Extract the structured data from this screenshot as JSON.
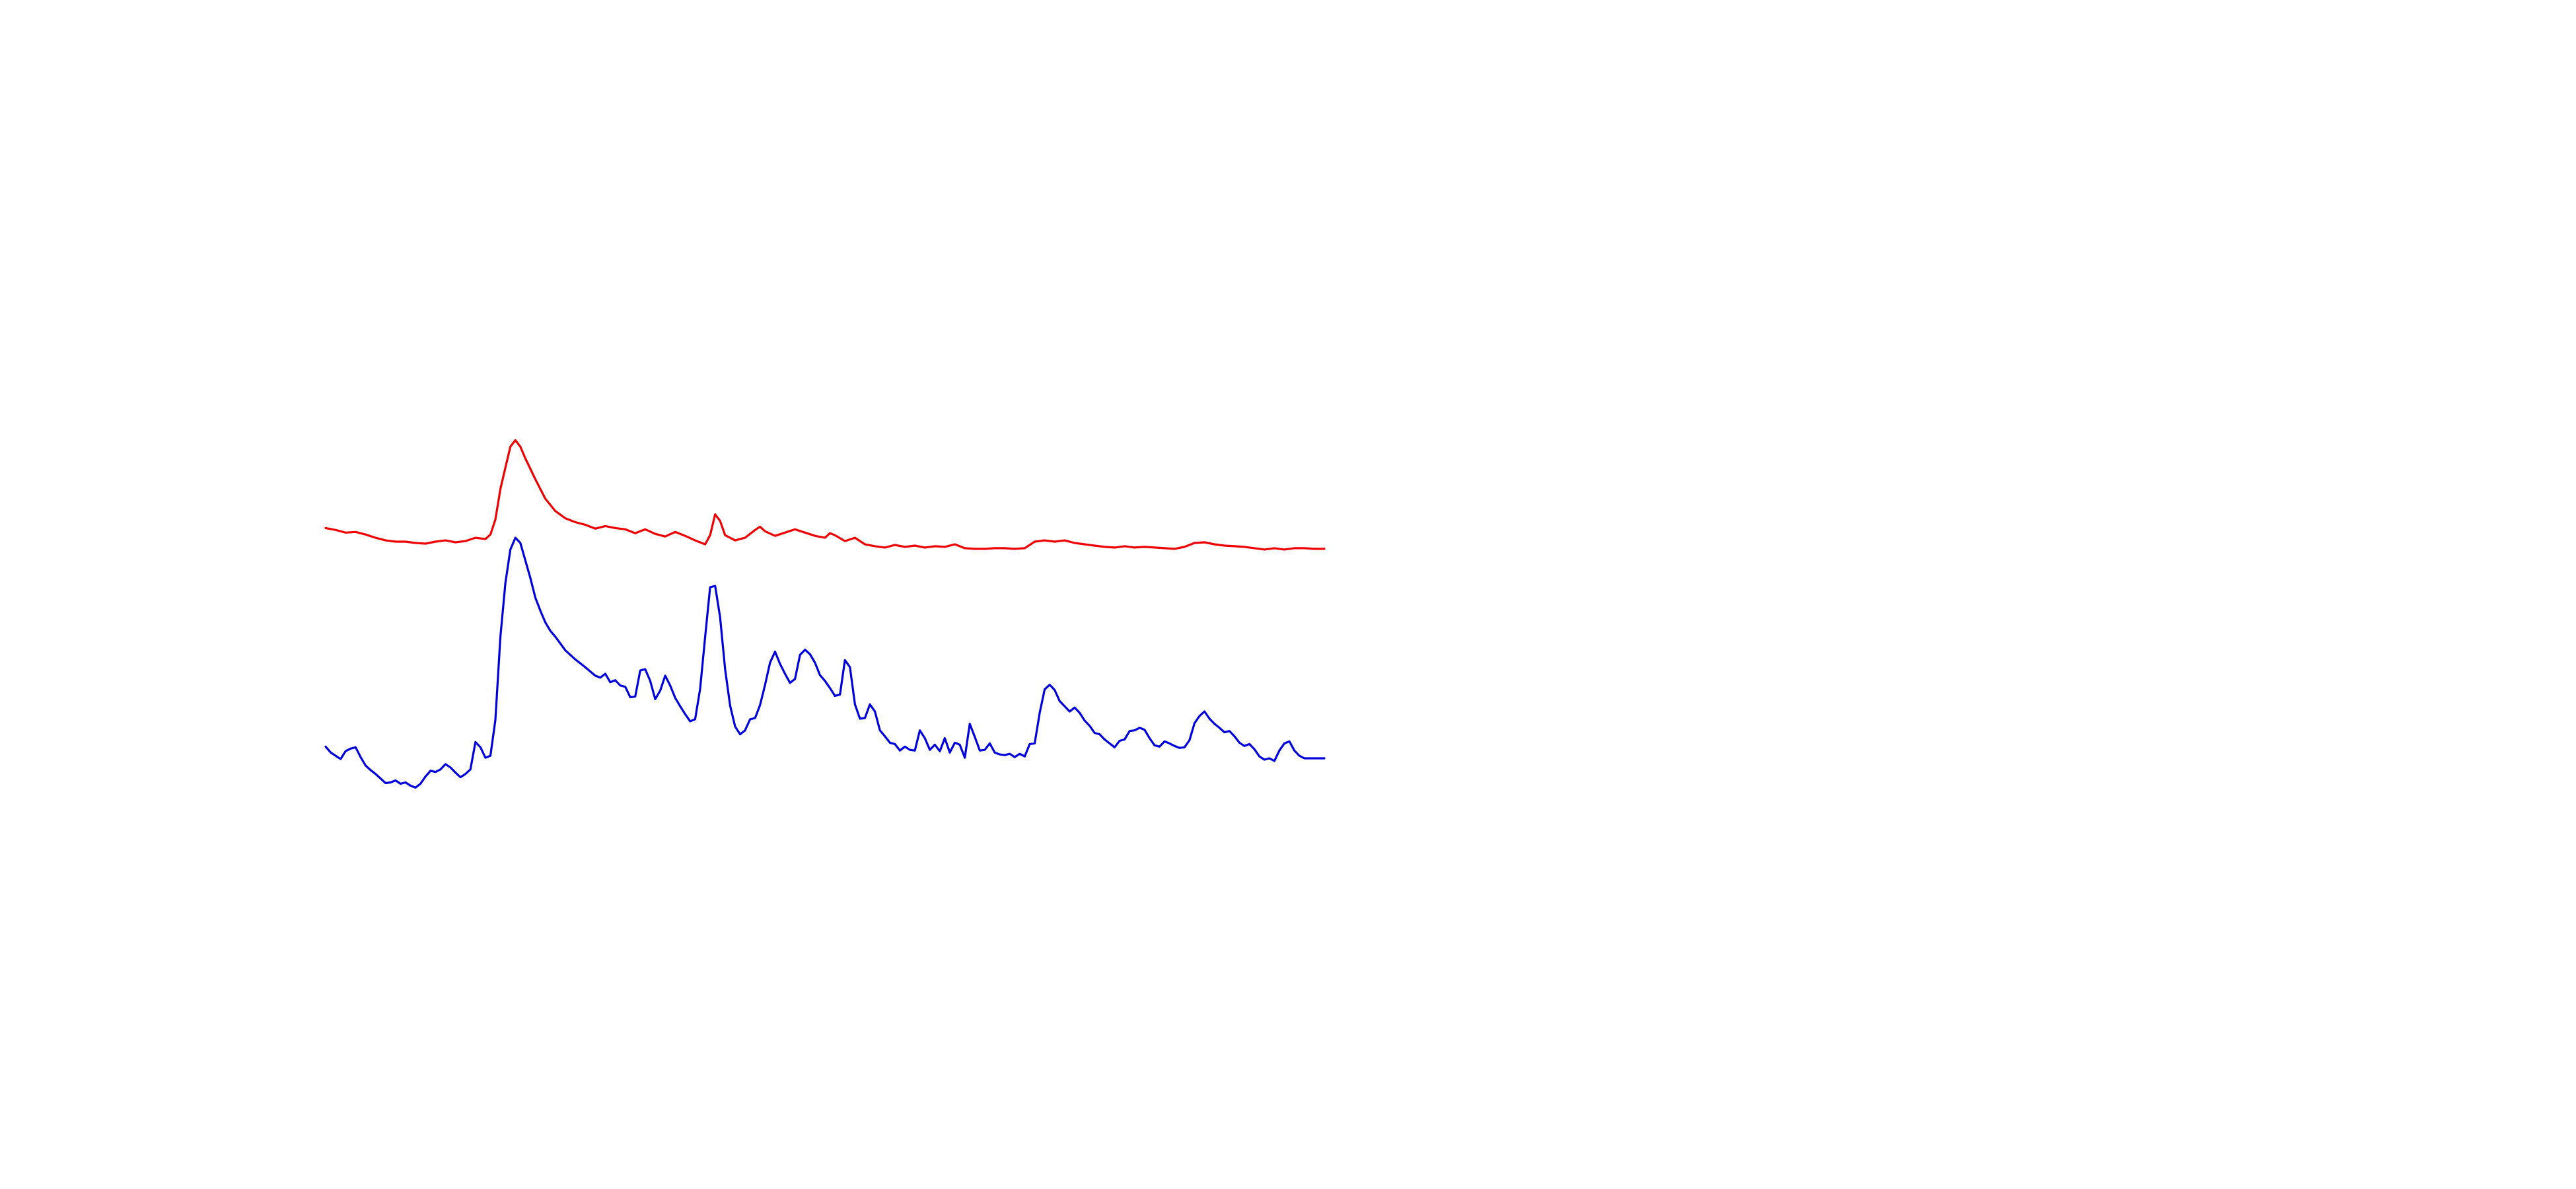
{
  "chart_data": {
    "type": "line",
    "title": "",
    "xlabel": "",
    "ylabel": "",
    "axes_visible": false,
    "grid": false,
    "legend": "none",
    "xlim": [
      0,
      100
    ],
    "ylim": [
      0,
      100
    ],
    "series": [
      {
        "color": "#ee0000",
        "points": [
          [
            0.0,
            75.7
          ],
          [
            1.0,
            75.4
          ],
          [
            2.0,
            75.0
          ],
          [
            3.0,
            75.1
          ],
          [
            4.0,
            74.7
          ],
          [
            5.0,
            74.2
          ],
          [
            6.0,
            73.8
          ],
          [
            7.0,
            73.6
          ],
          [
            8.0,
            73.6
          ],
          [
            9.0,
            73.4
          ],
          [
            10.0,
            73.3
          ],
          [
            11.0,
            73.6
          ],
          [
            12.0,
            73.8
          ],
          [
            13.0,
            73.5
          ],
          [
            14.0,
            73.7
          ],
          [
            15.0,
            74.2
          ],
          [
            16.0,
            74.0
          ],
          [
            16.5,
            74.7
          ],
          [
            17.0,
            77.0
          ],
          [
            17.5,
            81.7
          ],
          [
            18.0,
            85.0
          ],
          [
            18.5,
            88.2
          ],
          [
            19.0,
            89.2
          ],
          [
            19.5,
            88.2
          ],
          [
            20.0,
            86.4
          ],
          [
            21.0,
            83.2
          ],
          [
            22.0,
            80.2
          ],
          [
            23.0,
            78.3
          ],
          [
            24.0,
            77.2
          ],
          [
            25.0,
            76.6
          ],
          [
            26.0,
            76.2
          ],
          [
            27.0,
            75.6
          ],
          [
            28.0,
            76.0
          ],
          [
            29.0,
            75.7
          ],
          [
            30.0,
            75.5
          ],
          [
            31.0,
            74.9
          ],
          [
            32.0,
            75.5
          ],
          [
            33.0,
            74.8
          ],
          [
            34.0,
            74.4
          ],
          [
            35.0,
            75.1
          ],
          [
            36.0,
            74.5
          ],
          [
            37.0,
            73.8
          ],
          [
            38.0,
            73.2
          ],
          [
            38.5,
            74.6
          ],
          [
            39.0,
            77.8
          ],
          [
            39.5,
            76.8
          ],
          [
            40.0,
            74.6
          ],
          [
            41.0,
            73.8
          ],
          [
            42.0,
            74.2
          ],
          [
            43.0,
            75.4
          ],
          [
            43.5,
            75.9
          ],
          [
            44.0,
            75.2
          ],
          [
            45.0,
            74.5
          ],
          [
            46.0,
            75.0
          ],
          [
            47.0,
            75.5
          ],
          [
            48.0,
            75.0
          ],
          [
            49.0,
            74.5
          ],
          [
            50.0,
            74.2
          ],
          [
            50.5,
            74.9
          ],
          [
            51.0,
            74.6
          ],
          [
            52.0,
            73.7
          ],
          [
            53.0,
            74.2
          ],
          [
            54.0,
            73.2
          ],
          [
            55.0,
            72.9
          ],
          [
            56.0,
            72.7
          ],
          [
            57.0,
            73.1
          ],
          [
            58.0,
            72.8
          ],
          [
            59.0,
            73.0
          ],
          [
            60.0,
            72.7
          ],
          [
            61.0,
            72.9
          ],
          [
            62.0,
            72.8
          ],
          [
            63.0,
            73.2
          ],
          [
            64.0,
            72.6
          ],
          [
            65.0,
            72.5
          ],
          [
            66.0,
            72.5
          ],
          [
            67.0,
            72.6
          ],
          [
            68.0,
            72.6
          ],
          [
            69.0,
            72.5
          ],
          [
            70.0,
            72.6
          ],
          [
            71.0,
            73.6
          ],
          [
            72.0,
            73.8
          ],
          [
            73.0,
            73.6
          ],
          [
            74.0,
            73.8
          ],
          [
            75.0,
            73.4
          ],
          [
            76.0,
            73.2
          ],
          [
            77.0,
            73.0
          ],
          [
            78.0,
            72.8
          ],
          [
            79.0,
            72.7
          ],
          [
            80.0,
            72.9
          ],
          [
            81.0,
            72.7
          ],
          [
            82.0,
            72.8
          ],
          [
            83.0,
            72.7
          ],
          [
            84.0,
            72.6
          ],
          [
            85.0,
            72.5
          ],
          [
            86.0,
            72.8
          ],
          [
            87.0,
            73.4
          ],
          [
            88.0,
            73.5
          ],
          [
            89.0,
            73.2
          ],
          [
            90.0,
            73.0
          ],
          [
            91.0,
            72.9
          ],
          [
            92.0,
            72.8
          ],
          [
            93.0,
            72.6
          ],
          [
            94.0,
            72.4
          ],
          [
            95.0,
            72.6
          ],
          [
            96.0,
            72.4
          ],
          [
            97.0,
            72.6
          ],
          [
            98.0,
            72.6
          ],
          [
            99.0,
            72.5
          ],
          [
            100.0,
            72.5
          ]
        ]
      },
      {
        "color": "#0000dd",
        "points": [
          [
            0.0,
            42.1
          ],
          [
            0.5,
            41.2
          ],
          [
            1.0,
            40.7
          ],
          [
            1.5,
            40.2
          ],
          [
            2.0,
            41.4
          ],
          [
            2.5,
            41.8
          ],
          [
            3.0,
            42.0
          ],
          [
            3.5,
            40.5
          ],
          [
            4.0,
            39.2
          ],
          [
            4.5,
            38.5
          ],
          [
            5.0,
            37.9
          ],
          [
            5.5,
            37.2
          ],
          [
            6.0,
            36.5
          ],
          [
            6.5,
            36.6
          ],
          [
            7.0,
            36.9
          ],
          [
            7.5,
            36.4
          ],
          [
            8.0,
            36.6
          ],
          [
            8.5,
            36.1
          ],
          [
            9.0,
            35.8
          ],
          [
            9.5,
            36.4
          ],
          [
            10.0,
            37.5
          ],
          [
            10.5,
            38.4
          ],
          [
            11.0,
            38.2
          ],
          [
            11.5,
            38.6
          ],
          [
            12.0,
            39.4
          ],
          [
            12.5,
            38.9
          ],
          [
            13.0,
            38.1
          ],
          [
            13.5,
            37.4
          ],
          [
            14.0,
            37.9
          ],
          [
            14.5,
            38.6
          ],
          [
            15.0,
            42.8
          ],
          [
            15.5,
            42.0
          ],
          [
            16.0,
            40.4
          ],
          [
            16.5,
            40.7
          ],
          [
            17.0,
            46.2
          ],
          [
            17.5,
            59.0
          ],
          [
            18.0,
            67.3
          ],
          [
            18.5,
            72.4
          ],
          [
            19.0,
            74.2
          ],
          [
            19.5,
            73.4
          ],
          [
            20.0,
            70.7
          ],
          [
            20.5,
            68.0
          ],
          [
            21.0,
            65.0
          ],
          [
            21.5,
            63.0
          ],
          [
            22.0,
            61.2
          ],
          [
            22.5,
            59.9
          ],
          [
            23.0,
            59.0
          ],
          [
            24.0,
            56.9
          ],
          [
            25.0,
            55.5
          ],
          [
            26.0,
            54.3
          ],
          [
            27.0,
            53.0
          ],
          [
            27.5,
            52.7
          ],
          [
            28.0,
            53.3
          ],
          [
            28.5,
            52.0
          ],
          [
            29.0,
            52.3
          ],
          [
            29.5,
            51.5
          ],
          [
            30.0,
            51.3
          ],
          [
            30.5,
            49.7
          ],
          [
            31.0,
            49.8
          ],
          [
            31.5,
            53.8
          ],
          [
            32.0,
            54.0
          ],
          [
            32.5,
            52.2
          ],
          [
            33.0,
            49.4
          ],
          [
            33.5,
            50.7
          ],
          [
            34.0,
            53.0
          ],
          [
            34.5,
            51.5
          ],
          [
            35.0,
            49.6
          ],
          [
            35.5,
            48.3
          ],
          [
            36.0,
            47.1
          ],
          [
            36.5,
            46.0
          ],
          [
            37.0,
            46.3
          ],
          [
            37.5,
            51.0
          ],
          [
            38.0,
            59.0
          ],
          [
            38.5,
            66.6
          ],
          [
            39.0,
            66.8
          ],
          [
            39.5,
            62.0
          ],
          [
            40.0,
            54.0
          ],
          [
            40.5,
            48.4
          ],
          [
            41.0,
            45.2
          ],
          [
            41.5,
            44.0
          ],
          [
            42.0,
            44.6
          ],
          [
            42.5,
            46.3
          ],
          [
            43.0,
            46.5
          ],
          [
            43.5,
            48.5
          ],
          [
            44.0,
            51.6
          ],
          [
            44.5,
            55.0
          ],
          [
            45.0,
            56.7
          ],
          [
            45.5,
            54.8
          ],
          [
            46.0,
            53.3
          ],
          [
            46.5,
            51.9
          ],
          [
            47.0,
            52.5
          ],
          [
            47.5,
            56.2
          ],
          [
            48.0,
            57.0
          ],
          [
            48.5,
            56.3
          ],
          [
            49.0,
            55.0
          ],
          [
            49.5,
            53.1
          ],
          [
            50.0,
            52.2
          ],
          [
            50.5,
            51.1
          ],
          [
            51.0,
            49.9
          ],
          [
            51.5,
            50.1
          ],
          [
            52.0,
            55.4
          ],
          [
            52.5,
            54.3
          ],
          [
            53.0,
            48.6
          ],
          [
            53.5,
            46.4
          ],
          [
            54.0,
            46.5
          ],
          [
            54.5,
            48.6
          ],
          [
            55.0,
            47.5
          ],
          [
            55.5,
            44.6
          ],
          [
            56.0,
            43.7
          ],
          [
            56.5,
            42.7
          ],
          [
            57.0,
            42.5
          ],
          [
            57.5,
            41.5
          ],
          [
            58.0,
            42.1
          ],
          [
            58.5,
            41.6
          ],
          [
            59.0,
            41.5
          ],
          [
            59.5,
            44.6
          ],
          [
            60.0,
            43.4
          ],
          [
            60.5,
            41.6
          ],
          [
            61.0,
            42.4
          ],
          [
            61.5,
            41.4
          ],
          [
            62.0,
            43.4
          ],
          [
            62.5,
            41.2
          ],
          [
            63.0,
            42.7
          ],
          [
            63.5,
            42.4
          ],
          [
            64.0,
            40.4
          ],
          [
            64.5,
            45.6
          ],
          [
            65.0,
            43.6
          ],
          [
            65.5,
            41.5
          ],
          [
            66.0,
            41.6
          ],
          [
            66.5,
            42.6
          ],
          [
            67.0,
            41.2
          ],
          [
            67.5,
            40.9
          ],
          [
            68.0,
            40.8
          ],
          [
            68.5,
            41.0
          ],
          [
            69.0,
            40.5
          ],
          [
            69.5,
            41.0
          ],
          [
            70.0,
            40.6
          ],
          [
            70.5,
            42.5
          ],
          [
            71.0,
            42.6
          ],
          [
            71.5,
            47.3
          ],
          [
            72.0,
            50.9
          ],
          [
            72.5,
            51.6
          ],
          [
            73.0,
            50.8
          ],
          [
            73.5,
            49.1
          ],
          [
            74.0,
            48.3
          ],
          [
            74.5,
            47.5
          ],
          [
            75.0,
            48.1
          ],
          [
            75.5,
            47.3
          ],
          [
            76.0,
            46.1
          ],
          [
            76.5,
            45.3
          ],
          [
            77.0,
            44.2
          ],
          [
            77.5,
            44.0
          ],
          [
            78.0,
            43.2
          ],
          [
            78.5,
            42.6
          ],
          [
            79.0,
            42.0
          ],
          [
            79.5,
            43.0
          ],
          [
            80.0,
            43.2
          ],
          [
            80.5,
            44.5
          ],
          [
            81.0,
            44.6
          ],
          [
            81.5,
            45.0
          ],
          [
            82.0,
            44.7
          ],
          [
            82.5,
            43.4
          ],
          [
            83.0,
            42.3
          ],
          [
            83.5,
            42.1
          ],
          [
            84.0,
            42.9
          ],
          [
            84.5,
            42.6
          ],
          [
            85.0,
            42.2
          ],
          [
            85.5,
            41.9
          ],
          [
            86.0,
            42.0
          ],
          [
            86.5,
            43.1
          ],
          [
            87.0,
            45.7
          ],
          [
            87.5,
            46.8
          ],
          [
            88.0,
            47.5
          ],
          [
            88.5,
            46.4
          ],
          [
            89.0,
            45.6
          ],
          [
            89.5,
            45.0
          ],
          [
            90.0,
            44.3
          ],
          [
            90.5,
            44.5
          ],
          [
            91.0,
            43.7
          ],
          [
            91.5,
            42.7
          ],
          [
            92.0,
            42.2
          ],
          [
            92.5,
            42.5
          ],
          [
            93.0,
            41.7
          ],
          [
            93.5,
            40.6
          ],
          [
            94.0,
            40.1
          ],
          [
            94.5,
            40.3
          ],
          [
            95.0,
            39.9
          ],
          [
            95.5,
            41.5
          ],
          [
            96.0,
            42.6
          ],
          [
            96.5,
            42.9
          ],
          [
            97.0,
            41.5
          ],
          [
            97.5,
            40.7
          ],
          [
            98.0,
            40.3
          ],
          [
            98.5,
            40.3
          ],
          [
            100.0,
            40.3
          ]
        ]
      }
    ]
  }
}
